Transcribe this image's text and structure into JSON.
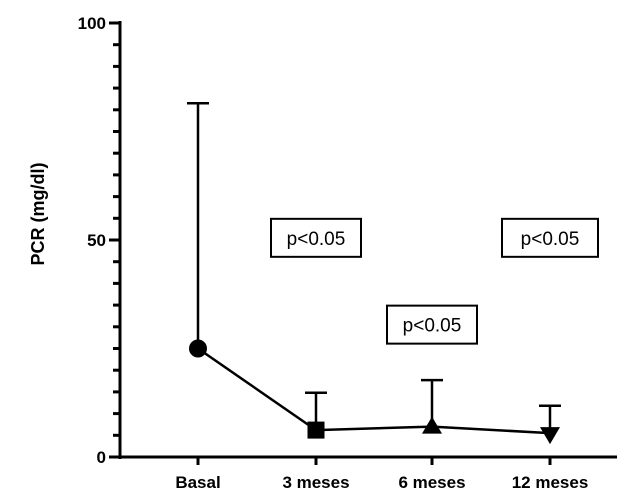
{
  "chart_data": {
    "type": "line",
    "title": "",
    "xlabel": "",
    "ylabel": "PCR (mg/dl)",
    "ylim": [
      0,
      100
    ],
    "yticks": [
      0,
      50,
      100
    ],
    "y_minor_step": 5,
    "categories": [
      "Basal",
      "3 meses",
      "6 meses",
      "12 meses"
    ],
    "series": [
      {
        "values": [
          25,
          6.2,
          7,
          5.5
        ],
        "error_upper": [
          81.5,
          14.8,
          17.7,
          11.8
        ],
        "markers": [
          "circle",
          "square",
          "triangle-up",
          "triangle-down"
        ],
        "color": "#000000"
      }
    ],
    "annotations": [
      {
        "text": "p<0.05",
        "category": "3 meses",
        "y": 50.5
      },
      {
        "text": "p<0.05",
        "category": "6 meses",
        "y": 30.5
      },
      {
        "text": "p<0.05",
        "category": "12 meses",
        "y": 50.5
      }
    ],
    "grid": false,
    "legend": "none"
  }
}
